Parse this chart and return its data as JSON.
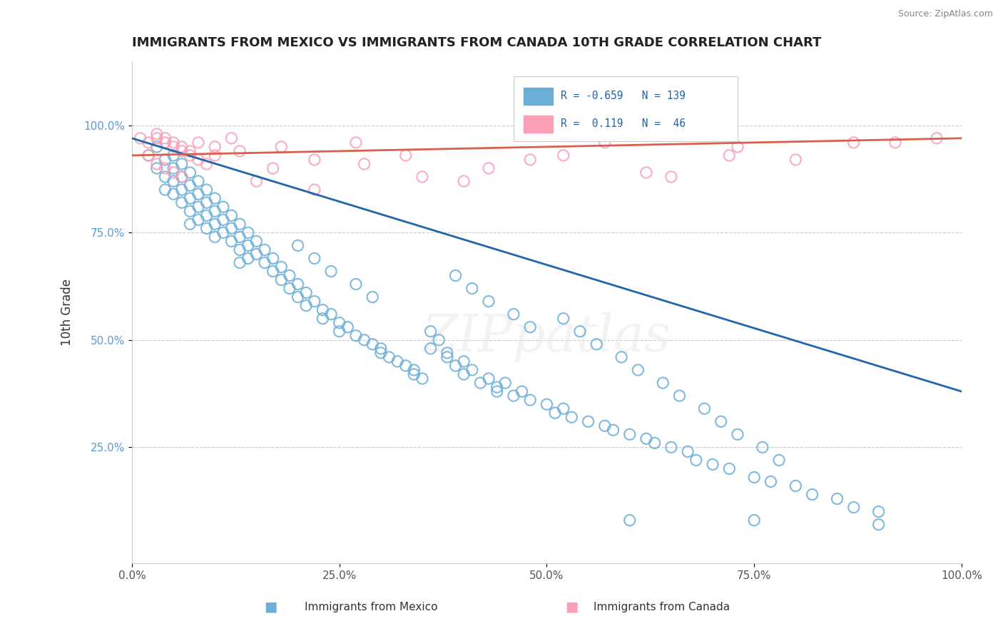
{
  "title": "IMMIGRANTS FROM MEXICO VS IMMIGRANTS FROM CANADA 10TH GRADE CORRELATION CHART",
  "source": "Source: ZipAtlas.com",
  "xlabel": "",
  "ylabel": "10th Grade",
  "xlim": [
    0.0,
    1.0
  ],
  "ylim": [
    0.0,
    1.15
  ],
  "x_tick_labels": [
    "0.0%",
    "25.0%",
    "50.0%",
    "75.0%",
    "100.0%"
  ],
  "x_tick_positions": [
    0.0,
    0.25,
    0.5,
    0.75,
    1.0
  ],
  "y_tick_labels": [
    "25.0%",
    "50.0%",
    "75.0%",
    "100.0%"
  ],
  "y_tick_positions": [
    0.25,
    0.5,
    0.75,
    1.0
  ],
  "legend_label_1": "Immigrants from Mexico",
  "legend_label_2": "Immigrants from Canada",
  "R1": -0.659,
  "N1": 139,
  "R2": 0.119,
  "N2": 46,
  "color_blue": "#6baed6",
  "color_pink": "#fa9fb5",
  "trendline_blue": "#2166ac",
  "trendline_pink": "#d6604d",
  "background_color": "#ffffff",
  "watermark": "ZIPpatlas",
  "blue_x": [
    0.02,
    0.03,
    0.03,
    0.04,
    0.04,
    0.04,
    0.05,
    0.05,
    0.05,
    0.05,
    0.06,
    0.06,
    0.06,
    0.06,
    0.07,
    0.07,
    0.07,
    0.07,
    0.07,
    0.08,
    0.08,
    0.08,
    0.08,
    0.09,
    0.09,
    0.09,
    0.09,
    0.1,
    0.1,
    0.1,
    0.1,
    0.11,
    0.11,
    0.11,
    0.12,
    0.12,
    0.12,
    0.13,
    0.13,
    0.13,
    0.13,
    0.14,
    0.14,
    0.14,
    0.15,
    0.15,
    0.16,
    0.16,
    0.17,
    0.17,
    0.18,
    0.18,
    0.19,
    0.19,
    0.2,
    0.2,
    0.21,
    0.21,
    0.22,
    0.23,
    0.23,
    0.24,
    0.25,
    0.25,
    0.26,
    0.27,
    0.28,
    0.29,
    0.3,
    0.3,
    0.31,
    0.32,
    0.33,
    0.34,
    0.34,
    0.35,
    0.36,
    0.36,
    0.37,
    0.38,
    0.38,
    0.39,
    0.4,
    0.4,
    0.41,
    0.42,
    0.43,
    0.44,
    0.44,
    0.45,
    0.46,
    0.47,
    0.48,
    0.5,
    0.51,
    0.52,
    0.53,
    0.55,
    0.57,
    0.58,
    0.6,
    0.62,
    0.63,
    0.65,
    0.67,
    0.68,
    0.7,
    0.72,
    0.75,
    0.77,
    0.8,
    0.82,
    0.85,
    0.87,
    0.9,
    0.52,
    0.54,
    0.56,
    0.59,
    0.61,
    0.64,
    0.66,
    0.69,
    0.71,
    0.73,
    0.76,
    0.78,
    0.39,
    0.41,
    0.43,
    0.46,
    0.48,
    0.2,
    0.22,
    0.24,
    0.27,
    0.29,
    0.6,
    0.75,
    0.9
  ],
  "blue_y": [
    0.93,
    0.95,
    0.9,
    0.92,
    0.88,
    0.85,
    0.93,
    0.9,
    0.87,
    0.84,
    0.91,
    0.88,
    0.85,
    0.82,
    0.89,
    0.86,
    0.83,
    0.8,
    0.77,
    0.87,
    0.84,
    0.81,
    0.78,
    0.85,
    0.82,
    0.79,
    0.76,
    0.83,
    0.8,
    0.77,
    0.74,
    0.81,
    0.78,
    0.75,
    0.79,
    0.76,
    0.73,
    0.77,
    0.74,
    0.71,
    0.68,
    0.75,
    0.72,
    0.69,
    0.73,
    0.7,
    0.71,
    0.68,
    0.69,
    0.66,
    0.67,
    0.64,
    0.65,
    0.62,
    0.63,
    0.6,
    0.61,
    0.58,
    0.59,
    0.57,
    0.55,
    0.56,
    0.54,
    0.52,
    0.53,
    0.51,
    0.5,
    0.49,
    0.48,
    0.47,
    0.46,
    0.45,
    0.44,
    0.43,
    0.42,
    0.41,
    0.52,
    0.48,
    0.5,
    0.47,
    0.46,
    0.44,
    0.45,
    0.42,
    0.43,
    0.4,
    0.41,
    0.38,
    0.39,
    0.4,
    0.37,
    0.38,
    0.36,
    0.35,
    0.33,
    0.34,
    0.32,
    0.31,
    0.3,
    0.29,
    0.28,
    0.27,
    0.26,
    0.25,
    0.24,
    0.22,
    0.21,
    0.2,
    0.18,
    0.17,
    0.16,
    0.14,
    0.13,
    0.11,
    0.1,
    0.55,
    0.52,
    0.49,
    0.46,
    0.43,
    0.4,
    0.37,
    0.34,
    0.31,
    0.28,
    0.25,
    0.22,
    0.65,
    0.62,
    0.59,
    0.56,
    0.53,
    0.72,
    0.69,
    0.66,
    0.63,
    0.6,
    0.08,
    0.08,
    0.07
  ],
  "pink_x": [
    0.01,
    0.02,
    0.02,
    0.03,
    0.03,
    0.04,
    0.04,
    0.05,
    0.05,
    0.06,
    0.06,
    0.07,
    0.08,
    0.09,
    0.1,
    0.12,
    0.15,
    0.18,
    0.22,
    0.27,
    0.33,
    0.4,
    0.48,
    0.57,
    0.65,
    0.73,
    0.8,
    0.87,
    0.92,
    0.97,
    0.03,
    0.04,
    0.05,
    0.06,
    0.07,
    0.08,
    0.1,
    0.13,
    0.17,
    0.22,
    0.28,
    0.35,
    0.43,
    0.52,
    0.62,
    0.72
  ],
  "pink_y": [
    0.97,
    0.96,
    0.93,
    0.97,
    0.91,
    0.96,
    0.9,
    0.95,
    0.89,
    0.94,
    0.88,
    0.93,
    0.92,
    0.91,
    0.93,
    0.97,
    0.87,
    0.95,
    0.85,
    0.96,
    0.93,
    0.87,
    0.92,
    0.96,
    0.88,
    0.95,
    0.92,
    0.96,
    0.96,
    0.97,
    0.98,
    0.97,
    0.96,
    0.95,
    0.94,
    0.96,
    0.95,
    0.94,
    0.9,
    0.92,
    0.91,
    0.88,
    0.9,
    0.93,
    0.89,
    0.93
  ]
}
